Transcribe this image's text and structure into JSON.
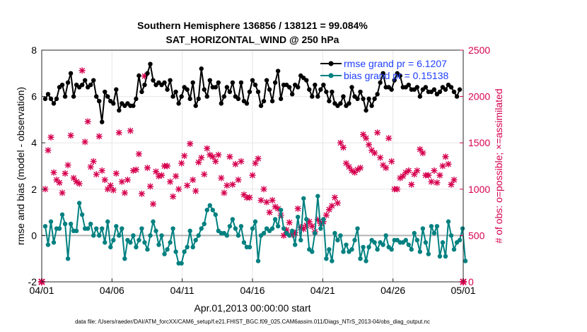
{
  "chart_data": {
    "type": "line",
    "title": "Southern Hemisphere 136856 / 138121 = 99.084%",
    "subtitle": "SAT_HORIZONTAL_WIND @ 250 hPa",
    "xlabel": "Apr.01,2013 00:00:00 start",
    "ylabel": "rmse and bias (model - observation)",
    "ylabel_right": "# of obs: o=possible; ×=assimilated",
    "footnote": "data file: /Users/raeder/DAI/ATM_forcXX/CAM6_setup/f.e21.FHIST_BGC.f09_025.CAM6assim.011/Diags_NTrS_2013-04/obs_diag_output.nc",
    "xlim": [
      0,
      30
    ],
    "ylim": [
      -2,
      8
    ],
    "ylim_right": [
      0,
      2500
    ],
    "grid": true,
    "legend_position": "top-right",
    "x_tick_labels": [
      "04/01",
      "04/06",
      "04/11",
      "04/16",
      "04/21",
      "04/26",
      "05/01"
    ],
    "y_tick_labels": [
      "-2",
      "0",
      "2",
      "4",
      "6",
      "8"
    ],
    "y_right_tick_labels": [
      "0",
      "500",
      "1000",
      "1500",
      "2000",
      "2500"
    ],
    "colors": {
      "rmse": "#000000",
      "bias": "#008080",
      "obs": "#d6004f",
      "zero_line": "#b3b3b3"
    },
    "series": [
      {
        "name": "rmse grand pr = 6.1207",
        "axis": "left",
        "values": [
          5.9,
          6.1,
          5.9,
          5.7,
          5.9,
          6.4,
          6.5,
          6.0,
          6.6,
          7.0,
          6.0,
          6.5,
          6.4,
          6.5,
          6.7,
          6.4,
          6.5,
          6.7,
          6.0,
          5.8,
          4.9,
          6.2,
          6.0,
          5.8,
          5.7,
          6.3,
          5.4,
          5.7,
          5.6,
          5.7,
          5.6,
          5.6,
          5.9,
          6.9,
          6.2,
          6.5,
          7.0,
          7.4,
          6.7,
          6.5,
          6.6,
          6.5,
          6.6,
          6.3,
          6.7,
          6.0,
          6.2,
          5.7,
          6.0,
          6.4,
          6.3,
          5.9,
          6.6,
          5.6,
          5.9,
          7.2,
          6.3,
          6.0,
          6.7,
          6.4,
          6.4,
          6.6,
          5.7,
          6.0,
          6.4,
          6.2,
          6.6,
          6.0,
          5.9,
          6.6,
          5.8,
          5.7,
          6.2,
          6.7,
          6.5,
          6.2,
          5.6,
          5.8,
          6.7,
          6.3,
          5.8,
          6.6,
          7.1,
          5.9,
          6.5,
          6.5,
          6.4,
          6.1,
          6.5,
          6.4,
          6.9,
          6.8,
          6.7,
          6.3,
          6.0,
          6.5,
          6.0,
          6.3,
          6.5,
          6.2,
          5.8,
          6.2,
          5.7,
          5.6,
          5.7,
          6.0,
          5.6,
          5.7,
          6.4,
          6.0,
          5.9,
          6.2,
          5.9,
          5.4,
          5.9,
          5.6,
          5.9,
          6.1,
          6.6,
          7.0,
          6.4,
          6.4,
          6.3,
          6.7,
          7.0,
          6.9,
          6.4,
          6.4,
          6.5,
          6.3,
          6.3,
          6.4,
          6.0,
          6.3,
          6.4,
          6.2,
          6.2,
          6.3,
          6.1,
          6.2,
          6.4,
          6.3,
          6.5,
          6.4,
          6.2,
          6.0,
          6.3
        ]
      },
      {
        "name": "bias grand pr = 0.15138",
        "axis": "left",
        "values": [
          0.4,
          -0.4,
          0.6,
          -0.3,
          0.3,
          0.3,
          0.9,
          0.5,
          -1.0,
          0.5,
          0.2,
          0.2,
          1.4,
          0.9,
          0.3,
          0.3,
          0.5,
          0.0,
          0.3,
          0.0,
          0.3,
          -0.3,
          0.6,
          -0.5,
          -0.2,
          0.4,
          0.0,
          0.3,
          -1.0,
          -0.2,
          -0.3,
          0.0,
          -0.5,
          -0.2,
          0.3,
          -0.3,
          -0.6,
          0.0,
          0.6,
          0.2,
          -0.4,
          0.0,
          -0.8,
          -0.6,
          -0.3,
          0.3,
          -0.7,
          -1.2,
          -1.2,
          -0.7,
          -0.5,
          0.2,
          -0.5,
          -0.2,
          0.0,
          0.3,
          0.5,
          1.1,
          1.3,
          1.1,
          0.9,
          0.2,
          0.1,
          0.1,
          0.0,
          0.4,
          0.7,
          0.3,
          0.0,
          0.4,
          -0.3,
          -0.5,
          -0.5,
          0.3,
          0.6,
          -1.1,
          0.0,
          0.1,
          0.3,
          0.2,
          0.3,
          0.7,
          0.4,
          1.1,
          0.3,
          0.1,
          0.0,
          0.2,
          -0.4,
          0.8,
          -0.2,
          1.6,
          0.7,
          -0.6,
          -0.7,
          0.1,
          1.7,
          0.3,
          0.7,
          -1.0,
          -0.6,
          -1.1,
          0.1,
          -0.2,
          0.0,
          -0.7,
          -0.4,
          -0.7,
          -0.6,
          -0.2,
          0.3,
          -1.0,
          -0.5,
          -1.1,
          -0.5,
          -0.2,
          -0.3,
          -0.6,
          -0.3,
          -0.4,
          0.0,
          -0.5,
          -0.6,
          -0.2,
          -0.2,
          -0.3,
          -0.3,
          -0.2,
          -0.4,
          -0.6,
          0.1,
          -0.2,
          -0.7,
          0.3,
          -0.3,
          -0.8,
          0.4,
          0.1,
          0.4,
          -0.9,
          -0.3,
          -0.9,
          0.6,
          0.0,
          -0.6,
          -0.3,
          -0.2,
          0.3,
          -1.1
        ]
      },
      {
        "name": "# of obs",
        "axis": "right",
        "values": [
          1000,
          1420,
          1560,
          1180,
          1100,
          1070,
          960,
          1170,
          1260,
          1580,
          1120,
          1080,
          1060,
          2280,
          1510,
          1730,
          1240,
          1300,
          1160,
          1570,
          1200,
          1100,
          1000,
          1040,
          990,
          1170,
          1610,
          1080,
          960,
          1100,
          1630,
          1200,
          1210,
          1380,
          950,
          2220,
          1230,
          1030,
          840,
          1190,
          1140,
          1150,
          1250,
          1250,
          1080,
          920,
          1140,
          1000,
          1280,
          1360,
          1040,
          1490,
          1100,
          980,
          1290,
          1340,
          1160,
          1440,
          1370,
          1350,
          1300,
          1370,
          1120,
          960,
          1040,
          1350,
          1050,
          1270,
          1100,
          1300,
          940,
          910,
          910,
          1150,
          1280,
          1330,
          880,
          1000,
          860,
          750,
          880,
          810,
          790,
          720,
          500,
          560,
          640,
          510,
          530,
          790,
          590,
          570,
          610,
          650,
          600,
          540,
          670,
          630,
          650,
          720,
          780,
          820,
          910,
          850,
          1500,
          1450,
          1280,
          1240,
          1200,
          1180,
          1210,
          1230,
          1590,
          1550,
          1480,
          1420,
          1390,
          1610,
          1340,
          1260,
          1230,
          1550,
          1300,
          1000,
          1000,
          1120,
          1140,
          1180,
          1200,
          1050,
          1160,
          1200,
          1430,
          1390,
          1150,
          1150,
          1080,
          1200,
          1070,
          1150,
          1250,
          1350,
          1270,
          1050,
          1100
        ]
      }
    ]
  }
}
